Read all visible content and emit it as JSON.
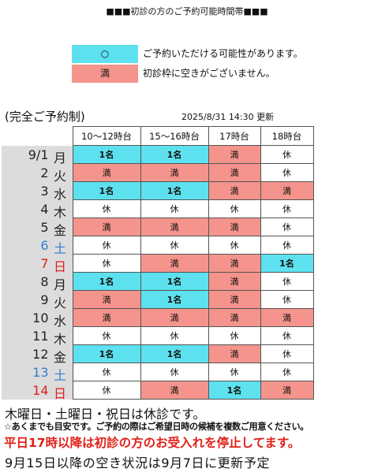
{
  "title": "■■■初診の方のご予約可能時間帯■■■",
  "legend": {
    "items": [
      {
        "symbol": "○",
        "text": "ご予約いただける可能性があります。",
        "color": "#5de1ef"
      },
      {
        "symbol": "満",
        "text": "初診枠に空きがございません。",
        "color": "#f4948c"
      }
    ]
  },
  "note_left": "(完全ご予約制)",
  "updated": "2025/8/31 14:30 更新",
  "status_colors": {
    "1名": "#5de1ef",
    "満": "#f4948c"
  },
  "table": {
    "header": [
      "10〜12時台",
      "15〜16時台",
      "17時台",
      "18時台"
    ],
    "rows": [
      {
        "date": "9/1",
        "weekday": "月",
        "color": "#222222",
        "cells": [
          "1名",
          "1名",
          "満",
          "休"
        ]
      },
      {
        "date": "2",
        "weekday": "火",
        "color": "#222222",
        "cells": [
          "満",
          "満",
          "満",
          "休"
        ]
      },
      {
        "date": "3",
        "weekday": "水",
        "color": "#222222",
        "cells": [
          "1名",
          "1名",
          "満",
          "満"
        ]
      },
      {
        "date": "4",
        "weekday": "木",
        "color": "#222222",
        "cells": [
          "休",
          "休",
          "休",
          "休"
        ]
      },
      {
        "date": "5",
        "weekday": "金",
        "color": "#222222",
        "cells": [
          "満",
          "満",
          "満",
          "休"
        ]
      },
      {
        "date": "6",
        "weekday": "土",
        "color": "#2f7fd0",
        "cells": [
          "休",
          "休",
          "休",
          "休"
        ]
      },
      {
        "date": "7",
        "weekday": "日",
        "color": "#e0201a",
        "cells": [
          "休",
          "満",
          "満",
          "1名"
        ]
      },
      {
        "date": "8",
        "weekday": "月",
        "color": "#222222",
        "cells": [
          "1名",
          "1名",
          "満",
          "休"
        ]
      },
      {
        "date": "9",
        "weekday": "火",
        "color": "#222222",
        "cells": [
          "満",
          "1名",
          "満",
          "休"
        ]
      },
      {
        "date": "10",
        "weekday": "水",
        "color": "#222222",
        "cells": [
          "満",
          "満",
          "満",
          "満"
        ]
      },
      {
        "date": "11",
        "weekday": "木",
        "color": "#222222",
        "cells": [
          "休",
          "休",
          "休",
          "休"
        ]
      },
      {
        "date": "12",
        "weekday": "金",
        "color": "#222222",
        "cells": [
          "1名",
          "1名",
          "満",
          "休"
        ]
      },
      {
        "date": "13",
        "weekday": "土",
        "color": "#2f7fd0",
        "cells": [
          "休",
          "休",
          "休",
          "休"
        ]
      },
      {
        "date": "14",
        "weekday": "日",
        "color": "#e0201a",
        "cells": [
          "休",
          "満",
          "1名",
          "満"
        ]
      }
    ]
  },
  "footer": [
    "木曜日・土曜日・祝日は休診です。",
    "☆あくまでも目安です。ご予約の際はご希望日時の候補を複数ご用意ください。",
    "平日17時以降は初診の方のお受入れを停止してます。",
    "9月15日以降の空き状況は9月7日に更新予定"
  ]
}
